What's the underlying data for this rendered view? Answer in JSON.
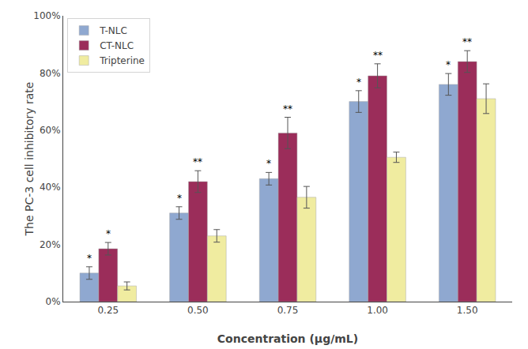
{
  "chart_data": {
    "type": "bar",
    "categories": [
      "0.25",
      "0.50",
      "0.75",
      "1.00",
      "1.50"
    ],
    "series": [
      {
        "name": "T-NLC",
        "color": "#8FA8D0",
        "values": [
          0.1,
          0.31,
          0.43,
          0.7,
          0.76
        ],
        "errors": [
          0.022,
          0.022,
          0.022,
          0.038,
          0.038
        ],
        "significance": [
          "*",
          "*",
          "*",
          "*",
          "*"
        ]
      },
      {
        "name": "CT-NLC",
        "color": "#9B2D5A",
        "values": [
          0.185,
          0.42,
          0.59,
          0.79,
          0.84
        ],
        "errors": [
          0.022,
          0.038,
          0.055,
          0.042,
          0.038
        ],
        "significance": [
          "*",
          "**",
          "**",
          "**",
          "**"
        ]
      },
      {
        "name": "Tripterine",
        "color": "#F0ECA0",
        "values": [
          0.055,
          0.23,
          0.365,
          0.505,
          0.71
        ],
        "errors": [
          0.014,
          0.022,
          0.038,
          0.018,
          0.052
        ]
      }
    ],
    "xlabel": "Concentration (µg/mL)",
    "ylabel": "The PC-3 cell inhibitory rate",
    "ylim": [
      0,
      1.0
    ],
    "yticks": [
      {
        "value": 0.0,
        "label": "0%"
      },
      {
        "value": 0.2,
        "label": "20%"
      },
      {
        "value": 0.4,
        "label": "40%"
      },
      {
        "value": 0.6,
        "label": "60%"
      },
      {
        "value": 0.8,
        "label": "80%"
      },
      {
        "value": 1.0,
        "label": "100%"
      }
    ],
    "grid": false,
    "legend": "upper left"
  }
}
